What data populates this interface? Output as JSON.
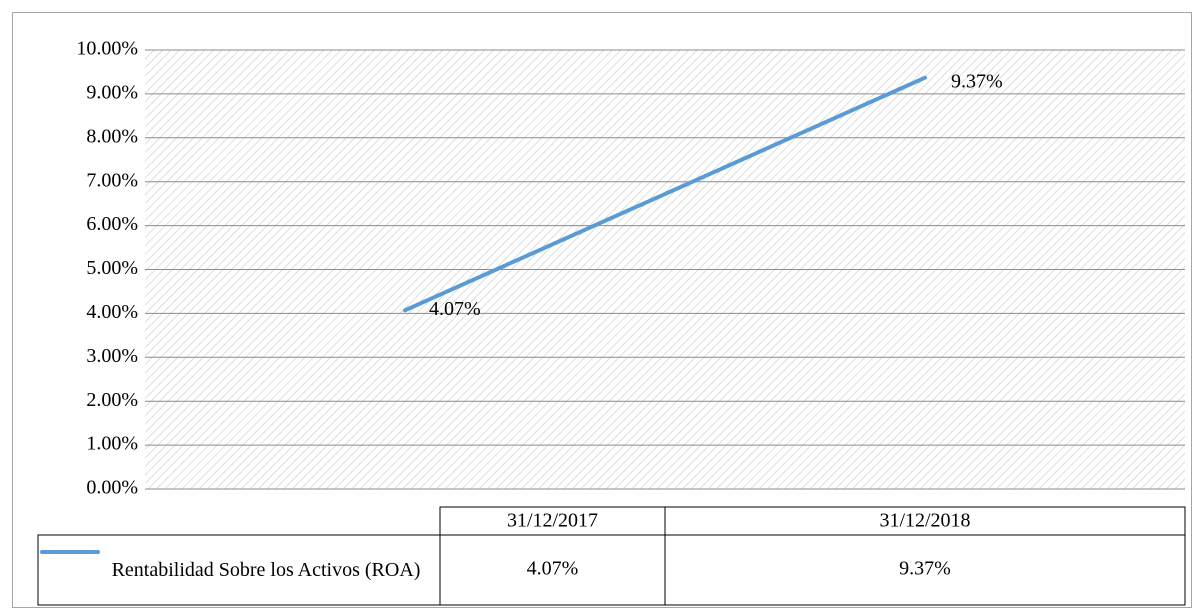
{
  "chart_data": {
    "type": "line",
    "categories": [
      "31/12/2017",
      "31/12/2018"
    ],
    "series": [
      {
        "name": "Rentabilidad Sobre los Activos (ROA)",
        "color": "#5b9bd5",
        "values": [
          4.07,
          9.37
        ],
        "value_labels": [
          "4.07%",
          "9.37%"
        ]
      }
    ],
    "ylim": [
      0,
      10
    ],
    "yticks": [
      {
        "value": 0,
        "label": "0.00%"
      },
      {
        "value": 1,
        "label": "1.00%"
      },
      {
        "value": 2,
        "label": "2.00%"
      },
      {
        "value": 3,
        "label": "3.00%"
      },
      {
        "value": 4,
        "label": "4.00%"
      },
      {
        "value": 5,
        "label": "5.00%"
      },
      {
        "value": 6,
        "label": "6.00%"
      },
      {
        "value": 7,
        "label": "7.00%"
      },
      {
        "value": 8,
        "label": "8.00%"
      },
      {
        "value": 9,
        "label": "9.00%"
      },
      {
        "value": 10,
        "label": "10.00%"
      }
    ],
    "grid": true
  }
}
